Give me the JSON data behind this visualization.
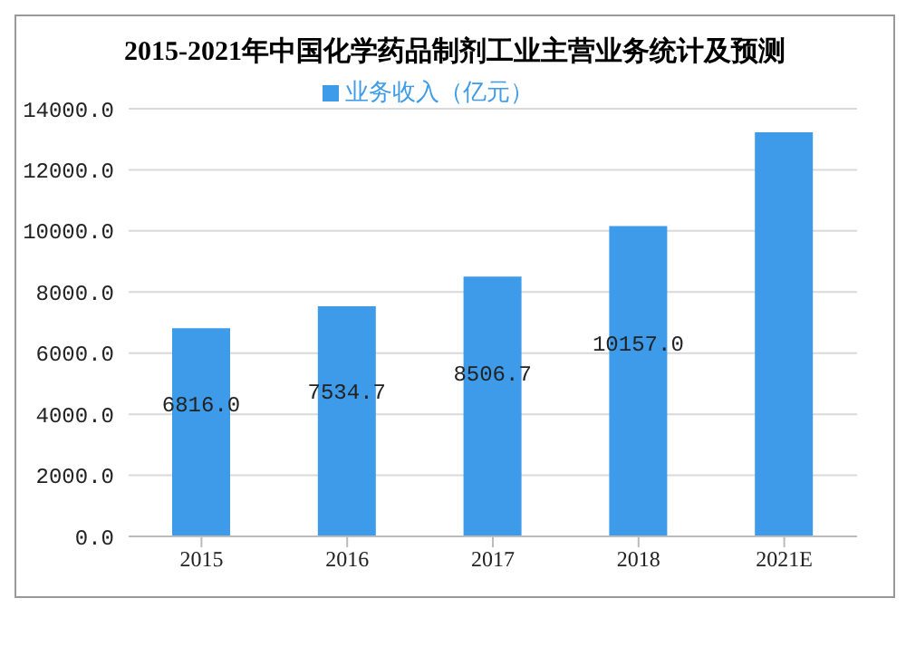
{
  "chart_data": {
    "type": "bar",
    "title": "2015-2021年中国化学药品制剂工业主营业务统计及预测",
    "categories": [
      "2015",
      "2016",
      "2017",
      "2018",
      "2021E"
    ],
    "series": [
      {
        "name": "业务收入（亿元）",
        "color": "#3d9be9",
        "values": [
          6816.0,
          7534.7,
          8506.7,
          10157.0,
          13230
        ],
        "value_labels": [
          "6816.0",
          "7534.7",
          "8506.7",
          "10157.0",
          null
        ]
      }
    ],
    "ylim": [
      0,
      14000
    ],
    "yticks": [
      {
        "value": 0,
        "label": "0.0"
      },
      {
        "value": 2000,
        "label": "2000.0"
      },
      {
        "value": 4000,
        "label": "4000.0"
      },
      {
        "value": 6000,
        "label": "6000.0"
      },
      {
        "value": 8000,
        "label": "8000.0"
      },
      {
        "value": 10000,
        "label": "10000.0"
      },
      {
        "value": 12000,
        "label": "12000.0"
      },
      {
        "value": 14000,
        "label": "14000.0"
      }
    ],
    "grid": "y",
    "legend": "top"
  }
}
